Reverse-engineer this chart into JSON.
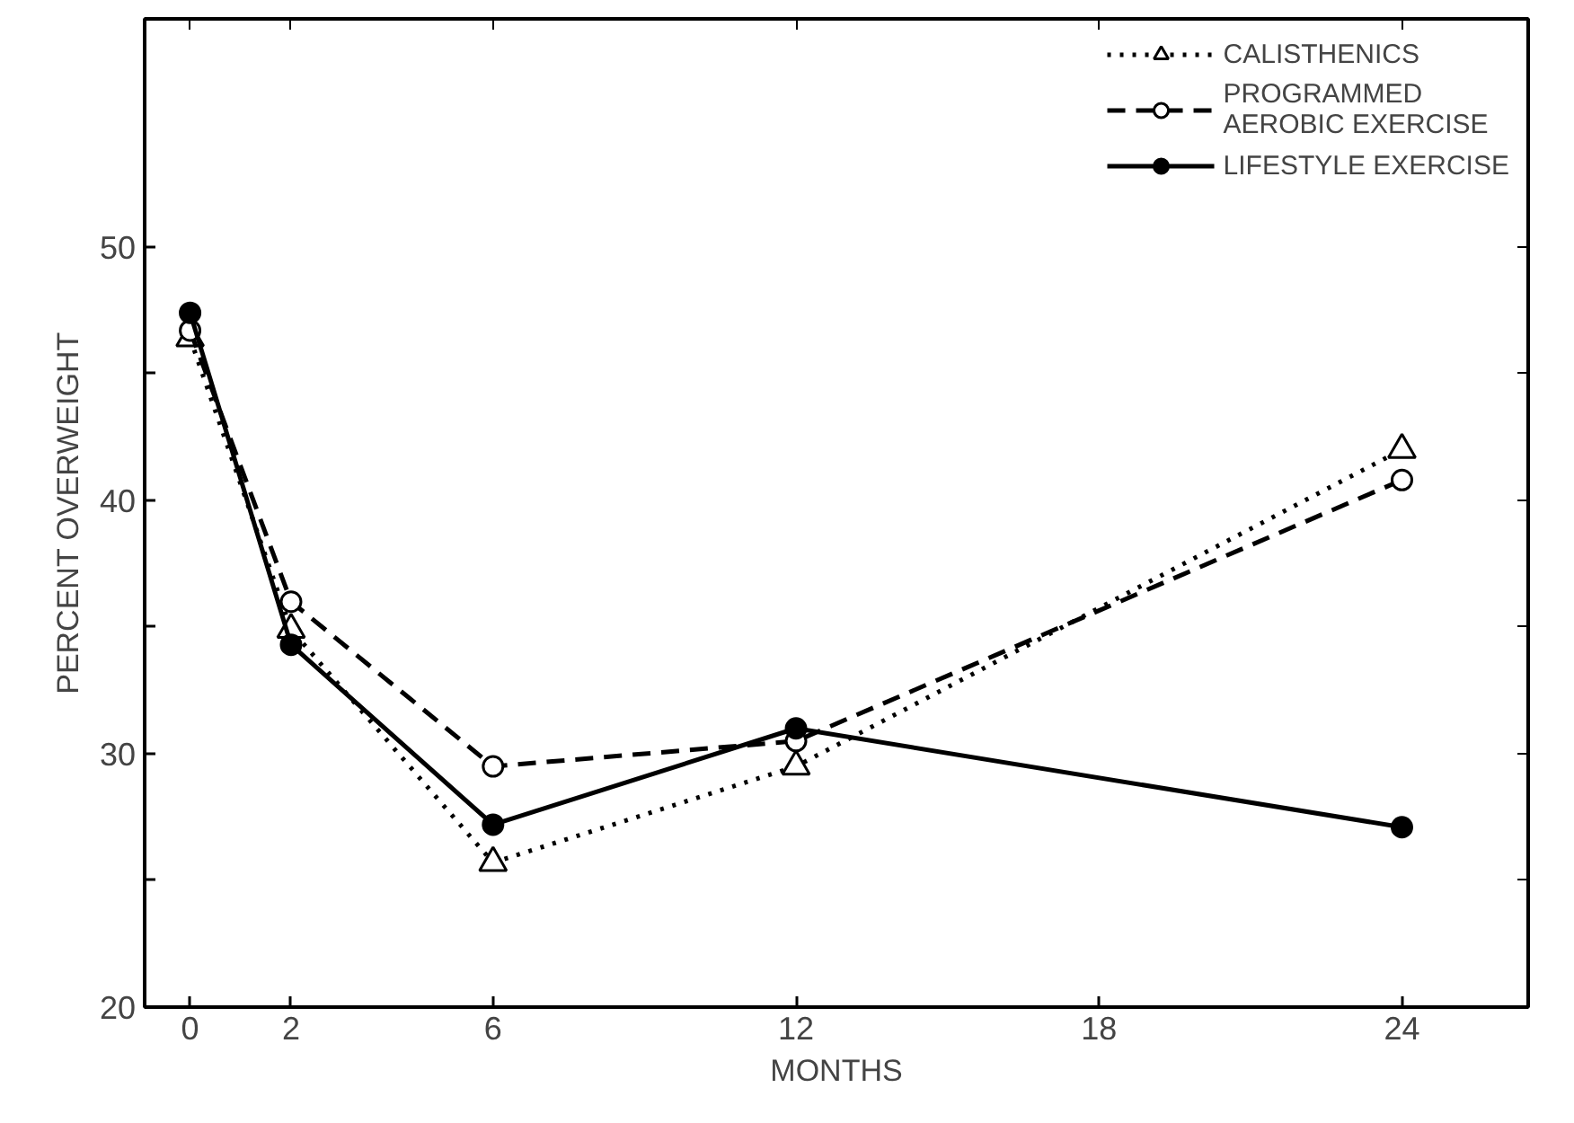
{
  "chart_data": {
    "type": "line",
    "xlabel": "MONTHS",
    "ylabel": "PERCENT OVERWEIGHT",
    "x": [
      0,
      2,
      6,
      12,
      24
    ],
    "xlim": [
      -0.9,
      26.5
    ],
    "xticks": [
      0,
      2,
      6,
      12,
      18,
      24
    ],
    "ylim": [
      20,
      59
    ],
    "yticks": [
      20,
      {
        "value": 25,
        "label": null
      },
      30,
      {
        "value": 35,
        "label": null
      },
      40,
      {
        "value": 45,
        "label": null
      },
      50
    ],
    "grid": false,
    "legend": "top right",
    "series": [
      {
        "name": "CALISTHENICS",
        "color": "#000000",
        "marker": "triangle",
        "line_style": "dotted",
        "values": [
          46.4,
          34.9,
          25.7,
          29.5,
          42.0
        ]
      },
      {
        "name": "PROGRAMMED\nAEROBIC EXERCISE",
        "color": "#000000",
        "marker": "circle",
        "line_style": "dashed",
        "values": [
          46.7,
          36.0,
          29.5,
          30.5,
          40.8
        ]
      },
      {
        "name": "LIFESTYLE EXERCISE",
        "color": "#000000",
        "marker": "circle",
        "line_style": "solid",
        "values": [
          47.4,
          34.3,
          27.2,
          31.0,
          27.1
        ]
      }
    ]
  }
}
